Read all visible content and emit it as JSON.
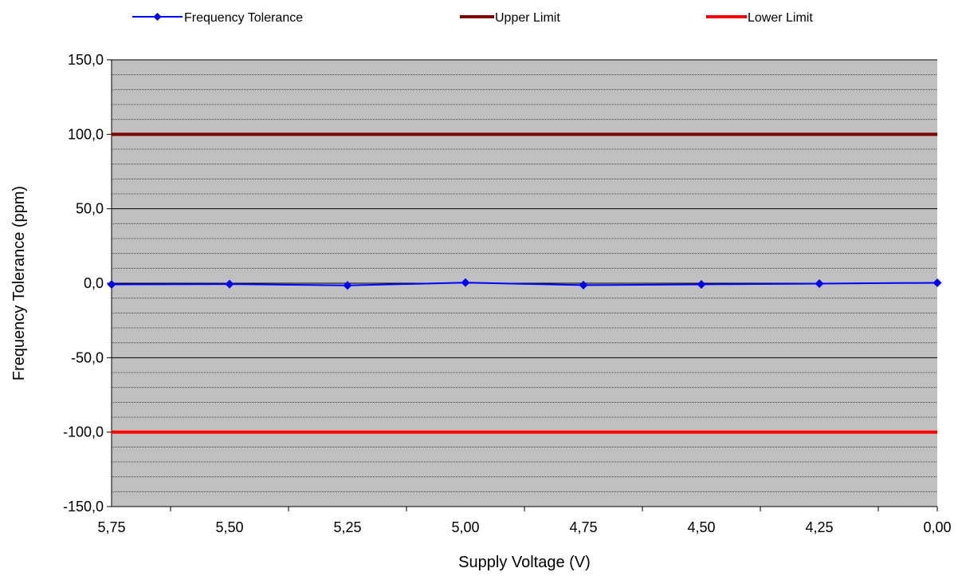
{
  "chart_data": {
    "type": "line",
    "xlabel": "Supply Voltage (V)",
    "ylabel": "Frequency Tolerance (ppm)",
    "categories": [
      "5,75",
      "5,50",
      "5,25",
      "5,00",
      "4,75",
      "4,50",
      "4,25",
      "0,00"
    ],
    "ylim": [
      -150,
      150
    ],
    "y_ticks": [
      "-150,0",
      "-100,0",
      "-50,0",
      "0,0",
      "50,0",
      "100,0",
      "150,0"
    ],
    "y_tick_values": [
      -150,
      -100,
      -50,
      0,
      50,
      100,
      150
    ],
    "grid": true,
    "legend_position": "top",
    "plot_background": "#c0c0c0",
    "series": [
      {
        "name": "Frequency Tolerance",
        "values": [
          -0.8,
          -0.6,
          -1.5,
          0.4,
          -1.3,
          -0.8,
          -0.3,
          0.3
        ],
        "color": "#0000ff",
        "marker": "diamond"
      },
      {
        "name": "Upper Limit",
        "values": [
          100,
          100,
          100,
          100,
          100,
          100,
          100,
          100
        ],
        "color": "#800000"
      },
      {
        "name": "Lower Limit",
        "values": [
          -100,
          -100,
          -100,
          -100,
          -100,
          -100,
          -100,
          -100
        ],
        "color": "#ff0000"
      }
    ]
  }
}
